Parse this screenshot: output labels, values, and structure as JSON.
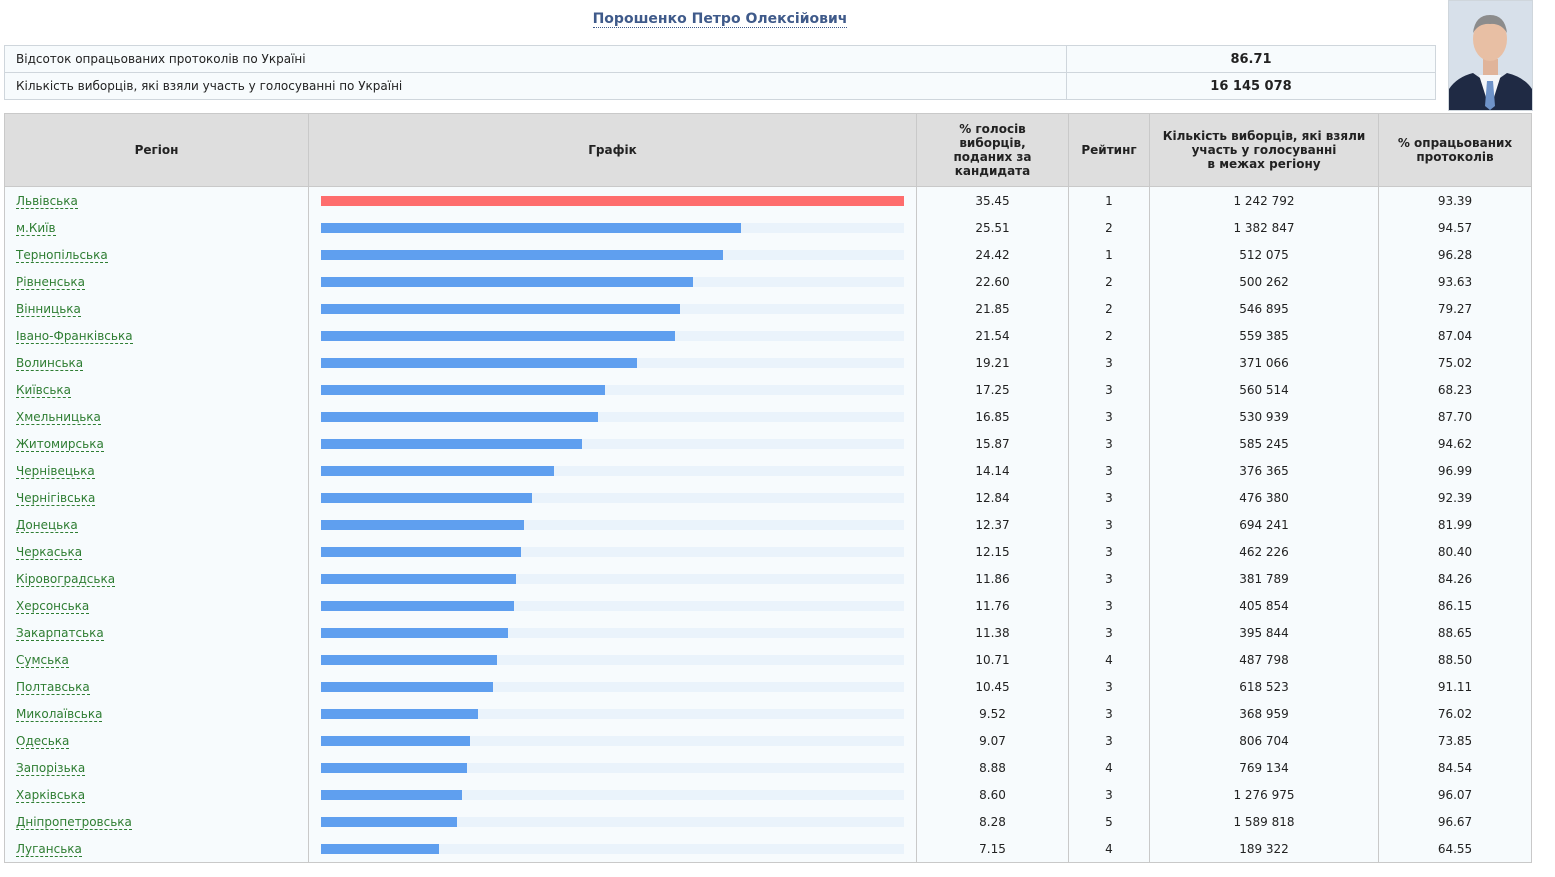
{
  "candidate": {
    "name": "Порошенко Петро Олексійович"
  },
  "summary": [
    {
      "label": "Відсоток опрацьованих протоколів по Україні",
      "value": "86.71"
    },
    {
      "label": "Кількість виборців, які взяли участь у голосуванні по Україні",
      "value": "16 145 078"
    }
  ],
  "table": {
    "headers": {
      "region": "Регіон",
      "chart": "Графік",
      "percent_line1": "% голосів",
      "percent_line2": "виборців,",
      "percent_line3": "поданих за",
      "percent_line4": "кандидата",
      "rating": "Рейтинг",
      "voters_line1": "Кількість виборців, які взяли",
      "voters_line2": "участь у голосуванні",
      "voters_line3": "в межах регіону",
      "processed_line1": "% опрацьованих",
      "processed_line2": "протоколів"
    },
    "max_percent": 35.45,
    "colors": {
      "top_bar": "#fe6d6d",
      "bar": "#5f9fef",
      "track": "#eaf3fb",
      "region_link": "#2e7d32"
    },
    "rows": [
      {
        "region": "Львівська",
        "percent": 35.45,
        "percent_text": "35.45",
        "rating": "1",
        "voters": "1 242 792",
        "processed": "93.39"
      },
      {
        "region": "м.Київ",
        "percent": 25.51,
        "percent_text": "25.51",
        "rating": "2",
        "voters": "1 382 847",
        "processed": "94.57"
      },
      {
        "region": "Тернопільська",
        "percent": 24.42,
        "percent_text": "24.42",
        "rating": "1",
        "voters": "512 075",
        "processed": "96.28"
      },
      {
        "region": "Рівненська",
        "percent": 22.6,
        "percent_text": "22.60",
        "rating": "2",
        "voters": "500 262",
        "processed": "93.63"
      },
      {
        "region": "Вінницька",
        "percent": 21.85,
        "percent_text": "21.85",
        "rating": "2",
        "voters": "546 895",
        "processed": "79.27"
      },
      {
        "region": "Івано-Франківська",
        "percent": 21.54,
        "percent_text": "21.54",
        "rating": "2",
        "voters": "559 385",
        "processed": "87.04"
      },
      {
        "region": "Волинська",
        "percent": 19.21,
        "percent_text": "19.21",
        "rating": "3",
        "voters": "371 066",
        "processed": "75.02"
      },
      {
        "region": "Київська",
        "percent": 17.25,
        "percent_text": "17.25",
        "rating": "3",
        "voters": "560 514",
        "processed": "68.23"
      },
      {
        "region": "Хмельницька",
        "percent": 16.85,
        "percent_text": "16.85",
        "rating": "3",
        "voters": "530 939",
        "processed": "87.70"
      },
      {
        "region": "Житомирська",
        "percent": 15.87,
        "percent_text": "15.87",
        "rating": "3",
        "voters": "585 245",
        "processed": "94.62"
      },
      {
        "region": "Чернівецька",
        "percent": 14.14,
        "percent_text": "14.14",
        "rating": "3",
        "voters": "376 365",
        "processed": "96.99"
      },
      {
        "region": "Чернігівська",
        "percent": 12.84,
        "percent_text": "12.84",
        "rating": "3",
        "voters": "476 380",
        "processed": "92.39"
      },
      {
        "region": "Донецька",
        "percent": 12.37,
        "percent_text": "12.37",
        "rating": "3",
        "voters": "694 241",
        "processed": "81.99"
      },
      {
        "region": "Черкаська",
        "percent": 12.15,
        "percent_text": "12.15",
        "rating": "3",
        "voters": "462 226",
        "processed": "80.40"
      },
      {
        "region": "Кіровоградська",
        "percent": 11.86,
        "percent_text": "11.86",
        "rating": "3",
        "voters": "381 789",
        "processed": "84.26"
      },
      {
        "region": "Херсонська",
        "percent": 11.76,
        "percent_text": "11.76",
        "rating": "3",
        "voters": "405 854",
        "processed": "86.15"
      },
      {
        "region": "Закарпатська",
        "percent": 11.38,
        "percent_text": "11.38",
        "rating": "3",
        "voters": "395 844",
        "processed": "88.65"
      },
      {
        "region": "Сумська",
        "percent": 10.71,
        "percent_text": "10.71",
        "rating": "4",
        "voters": "487 798",
        "processed": "88.50"
      },
      {
        "region": "Полтавська",
        "percent": 10.45,
        "percent_text": "10.45",
        "rating": "3",
        "voters": "618 523",
        "processed": "91.11"
      },
      {
        "region": "Миколаївська",
        "percent": 9.52,
        "percent_text": "9.52",
        "rating": "3",
        "voters": "368 959",
        "processed": "76.02"
      },
      {
        "region": "Одеська",
        "percent": 9.07,
        "percent_text": "9.07",
        "rating": "3",
        "voters": "806 704",
        "processed": "73.85"
      },
      {
        "region": "Запорізька",
        "percent": 8.88,
        "percent_text": "8.88",
        "rating": "4",
        "voters": "769 134",
        "processed": "84.54"
      },
      {
        "region": "Харківська",
        "percent": 8.6,
        "percent_text": "8.60",
        "rating": "3",
        "voters": "1 276 975",
        "processed": "96.07"
      },
      {
        "region": "Дніпропетровська",
        "percent": 8.28,
        "percent_text": "8.28",
        "rating": "5",
        "voters": "1 589 818",
        "processed": "96.67"
      },
      {
        "region": "Луганська",
        "percent": 7.15,
        "percent_text": "7.15",
        "rating": "4",
        "voters": "189 322",
        "processed": "64.55"
      }
    ]
  }
}
